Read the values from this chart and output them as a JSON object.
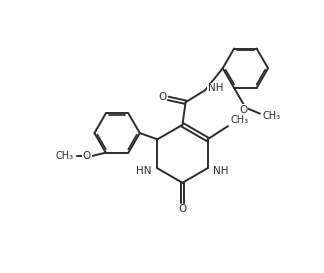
{
  "background_color": "#ffffff",
  "line_color": "#2d2d2d",
  "line_width": 1.4,
  "font_size": 7.5,
  "figsize": [
    3.24,
    2.73
  ],
  "dpi": 100,
  "xlim": [
    0,
    10
  ],
  "ylim": [
    0,
    8.5
  ]
}
